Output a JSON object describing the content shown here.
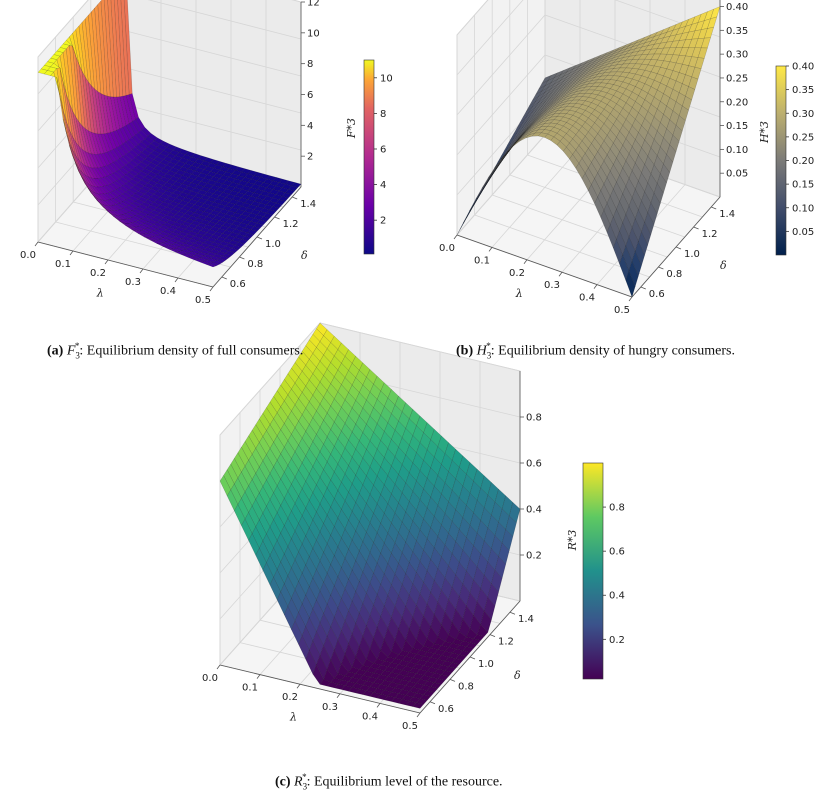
{
  "captions": [
    {
      "tag": "(a)",
      "sym": "F",
      "sub": "3",
      "sup": "*",
      "text": ": Equilibrium density of full consumers."
    },
    {
      "tag": "(b)",
      "sym": "H",
      "sub": "3",
      "sup": "*",
      "text": ": Equilibrium density of hungry consumers."
    },
    {
      "tag": "(c)",
      "sym": "R",
      "sub": "3",
      "sup": "*",
      "text": ": Equilibrium level of the resource."
    }
  ],
  "chart_data": [
    {
      "type": "surface",
      "colormap": "plasma",
      "xlabel": "λ",
      "ylabel": "δ",
      "zlabel": "F*3",
      "x_ticks": [
        "0.0",
        "0.1",
        "0.2",
        "0.3",
        "0.4",
        "0.5"
      ],
      "y_ticks": [
        "0.6",
        "0.8",
        "1.0",
        "1.2",
        "1.4"
      ],
      "z_ticks": [
        "2",
        "4",
        "6",
        "8",
        "10",
        "12"
      ],
      "colorbar_ticks": [
        "2",
        "4",
        "6",
        "8",
        "10"
      ],
      "xlim": [
        0,
        0.5
      ],
      "ylim": [
        0.5,
        1.5
      ],
      "zlim": [
        0,
        12
      ],
      "clim": [
        0.1,
        11
      ],
      "surface_samples": [
        {
          "lambda": 0.0,
          "delta": 0.5,
          "z": 11.0
        },
        {
          "lambda": 0.0,
          "delta": 1.5,
          "z": 2.5
        },
        {
          "lambda": 0.1,
          "delta": 0.5,
          "z": 1.5
        },
        {
          "lambda": 0.5,
          "delta": 0.5,
          "z": 0.1
        },
        {
          "lambda": 0.5,
          "delta": 1.5,
          "z": 0.1
        }
      ]
    },
    {
      "type": "surface",
      "colormap": "cividis",
      "xlabel": "λ",
      "ylabel": "δ",
      "zlabel": "H*3",
      "x_ticks": [
        "0.0",
        "0.1",
        "0.2",
        "0.3",
        "0.4",
        "0.5"
      ],
      "y_ticks": [
        "0.6",
        "0.8",
        "1.0",
        "1.2",
        "1.4"
      ],
      "z_ticks": [
        "0.05",
        "0.10",
        "0.15",
        "0.20",
        "0.25",
        "0.30",
        "0.35",
        "0.40"
      ],
      "colorbar_ticks": [
        "0.05",
        "0.10",
        "0.15",
        "0.20",
        "0.25",
        "0.30",
        "0.35",
        "0.40"
      ],
      "xlim": [
        0,
        0.5
      ],
      "ylim": [
        0.5,
        1.5
      ],
      "zlim": [
        0,
        0.42
      ],
      "clim": [
        0.0,
        0.4
      ],
      "surface_samples": [
        {
          "lambda": 0.0,
          "delta": 0.5,
          "z": 0.0
        },
        {
          "lambda": 0.0,
          "delta": 1.5,
          "z": 0.2
        },
        {
          "lambda": 0.25,
          "delta": 0.5,
          "z": 0.25
        },
        {
          "lambda": 0.5,
          "delta": 0.5,
          "z": 0.0
        },
        {
          "lambda": 0.5,
          "delta": 1.5,
          "z": 0.4
        }
      ]
    },
    {
      "type": "surface",
      "colormap": "viridis",
      "xlabel": "λ",
      "ylabel": "δ",
      "zlabel": "R*3",
      "x_ticks": [
        "0.0",
        "0.1",
        "0.2",
        "0.3",
        "0.4",
        "0.5"
      ],
      "y_ticks": [
        "0.6",
        "0.8",
        "1.0",
        "1.2",
        "1.4"
      ],
      "z_ticks": [
        "0.2",
        "0.4",
        "0.6",
        "0.8"
      ],
      "colorbar_ticks": [
        "0.2",
        "0.4",
        "0.6",
        "0.8"
      ],
      "xlim": [
        0,
        0.5
      ],
      "ylim": [
        0.5,
        1.5
      ],
      "zlim": [
        0,
        1.0
      ],
      "clim": [
        0.02,
        1.0
      ],
      "surface_samples": [
        {
          "lambda": 0.0,
          "delta": 0.5,
          "z": 0.8
        },
        {
          "lambda": 0.0,
          "delta": 1.5,
          "z": 1.0
        },
        {
          "lambda": 0.5,
          "delta": 0.5,
          "z": 0.02
        },
        {
          "lambda": 0.5,
          "delta": 1.5,
          "z": 0.5
        }
      ]
    }
  ]
}
